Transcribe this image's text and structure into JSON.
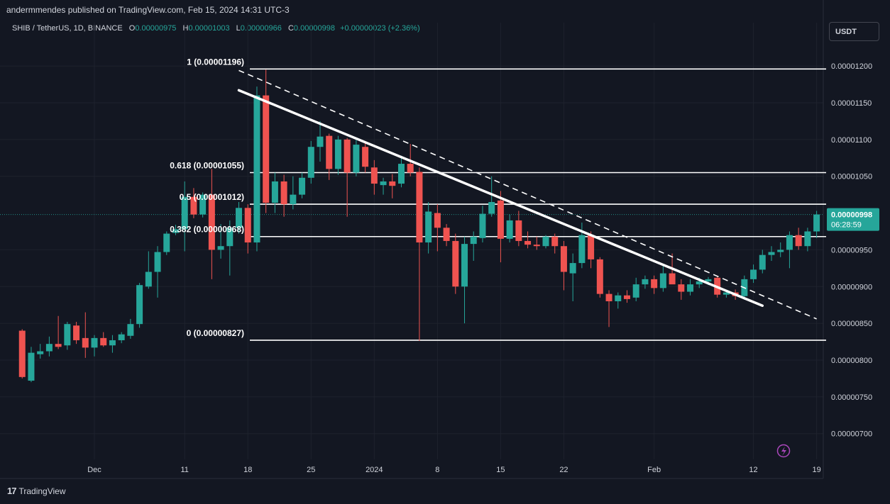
{
  "header": {
    "publisher_line": "andermmendes published on TradingView.com, Feb 15, 2024 14:31 UTC-3",
    "symbol": "SHIB / TetherUS, 1D, BINANCE",
    "o_label": "O",
    "o_value": "0.00000975",
    "h_label": "H",
    "h_value": "0.00001003",
    "l_label": "L",
    "l_value": "0.00000966",
    "c_label": "C",
    "c_value": "0.00000998",
    "change": "+0.00000023 (+2.36%)",
    "currency_button": "USDT"
  },
  "footer": {
    "brand": "TradingView",
    "logo": "17"
  },
  "colors": {
    "background": "#131722",
    "up": "#26a69a",
    "down": "#ef5350",
    "text": "#d1d4dc",
    "grid": "#1e222d",
    "price_tag": "#26a69a",
    "drawing": "#ffffff",
    "icon": "#ab47bc"
  },
  "chart_data": {
    "type": "candlestick",
    "symbol": "SHIB / TetherUS",
    "interval": "1D",
    "exchange": "BINANCE",
    "y_range": [
      6.65e-06,
      1.23e-05
    ],
    "y_ticks": [
      "0.00001200",
      "0.00001150",
      "0.00001100",
      "0.00001050",
      "0.00000950",
      "0.00000900",
      "0.00000850",
      "0.00000800",
      "0.00000750",
      "0.00000700"
    ],
    "x_ticks": [
      {
        "label": "Dec",
        "date": "2023-12-01"
      },
      {
        "label": "11",
        "date": "2023-12-11"
      },
      {
        "label": "18",
        "date": "2023-12-18"
      },
      {
        "label": "25",
        "date": "2023-12-25"
      },
      {
        "label": "2024",
        "date": "2024-01-01"
      },
      {
        "label": "8",
        "date": "2024-01-08"
      },
      {
        "label": "15",
        "date": "2024-01-15"
      },
      {
        "label": "22",
        "date": "2024-01-22"
      },
      {
        "label": "Feb",
        "date": "2024-02-01"
      },
      {
        "label": "12",
        "date": "2024-02-12"
      },
      {
        "label": "19",
        "date": "2024-02-19"
      }
    ],
    "current_price": {
      "label": "0.00000998",
      "countdown": "06:28:59",
      "value": 9.98e-06
    },
    "fib_levels": [
      {
        "label": "1 (0.00001196)",
        "value": 1.196e-05
      },
      {
        "label": "0.618 (0.00001055)",
        "value": 1.055e-05
      },
      {
        "label": "0.5 (0.00001012)",
        "value": 1.012e-05
      },
      {
        "label": "0.382 (0.00000968)",
        "value": 9.68e-06
      },
      {
        "label": "0 (0.00000827)",
        "value": 8.27e-06
      }
    ],
    "trendlines": [
      {
        "style": "solid",
        "from": {
          "date": "2023-12-17",
          "value": 1.167e-05
        },
        "to": {
          "date": "2024-02-13",
          "value": 8.74e-06
        }
      },
      {
        "style": "dashed",
        "from": {
          "date": "2023-12-17",
          "value": 1.194e-05
        },
        "to": {
          "date": "2024-02-19",
          "value": 8.56e-06
        }
      }
    ],
    "candles": [
      {
        "date": "2023-11-23",
        "o": 8.4e-06,
        "h": 8.42e-06,
        "l": 7.75e-06,
        "c": 7.77e-06
      },
      {
        "date": "2023-11-24",
        "o": 7.72e-06,
        "h": 8.18e-06,
        "l": 7.7e-06,
        "c": 8.1e-06
      },
      {
        "date": "2023-11-25",
        "o": 8.08e-06,
        "h": 8.22e-06,
        "l": 8.02e-06,
        "c": 8.12e-06
      },
      {
        "date": "2023-11-26",
        "o": 8.12e-06,
        "h": 8.32e-06,
        "l": 8.05e-06,
        "c": 8.22e-06
      },
      {
        "date": "2023-11-27",
        "o": 8.22e-06,
        "h": 8.6e-06,
        "l": 8.15e-06,
        "c": 8.18e-06
      },
      {
        "date": "2023-11-28",
        "o": 8.2e-06,
        "h": 8.52e-06,
        "l": 8.14e-06,
        "c": 8.49e-06
      },
      {
        "date": "2023-11-29",
        "o": 8.47e-06,
        "h": 8.52e-06,
        "l": 8.22e-06,
        "c": 8.27e-06
      },
      {
        "date": "2023-11-30",
        "o": 8.3e-06,
        "h": 8.65e-06,
        "l": 8.03e-06,
        "c": 8.17e-06
      },
      {
        "date": "2023-12-01",
        "o": 8.17e-06,
        "h": 8.34e-06,
        "l": 8.05e-06,
        "c": 8.3e-06
      },
      {
        "date": "2023-12-02",
        "o": 8.3e-06,
        "h": 8.38e-06,
        "l": 8.18e-06,
        "c": 8.2e-06
      },
      {
        "date": "2023-12-03",
        "o": 8.2e-06,
        "h": 8.34e-06,
        "l": 8.1e-06,
        "c": 8.27e-06
      },
      {
        "date": "2023-12-04",
        "o": 8.27e-06,
        "h": 8.38e-06,
        "l": 8.23e-06,
        "c": 8.35e-06
      },
      {
        "date": "2023-12-05",
        "o": 8.33e-06,
        "h": 8.56e-06,
        "l": 8.29e-06,
        "c": 8.49e-06
      },
      {
        "date": "2023-12-06",
        "o": 8.49e-06,
        "h": 9.05e-06,
        "l": 8.44e-06,
        "c": 9.02e-06
      },
      {
        "date": "2023-12-07",
        "o": 9e-06,
        "h": 9.48e-06,
        "l": 8.97e-06,
        "c": 9.2e-06
      },
      {
        "date": "2023-12-08",
        "o": 9.2e-06,
        "h": 9.55e-06,
        "l": 8.85e-06,
        "c": 9.47e-06
      },
      {
        "date": "2023-12-09",
        "o": 9.47e-06,
        "h": 9.75e-06,
        "l": 9.43e-06,
        "c": 9.72e-06
      },
      {
        "date": "2023-12-10",
        "o": 9.73e-06,
        "h": 9.84e-06,
        "l": 9.7e-06,
        "c": 9.78e-06
      },
      {
        "date": "2023-12-11",
        "o": 9.78e-06,
        "h": 1.043e-05,
        "l": 9.48e-06,
        "c": 1.022e-05
      },
      {
        "date": "2023-12-12",
        "o": 1.022e-05,
        "h": 1.034e-05,
        "l": 9.93e-06,
        "c": 9.98e-06
      },
      {
        "date": "2023-12-13",
        "o": 9.98e-06,
        "h": 1.028e-05,
        "l": 9.94e-06,
        "c": 1.025e-05
      },
      {
        "date": "2023-12-14",
        "o": 1.025e-05,
        "h": 1.06e-05,
        "l": 9.1e-06,
        "c": 9.5e-06
      },
      {
        "date": "2023-12-15",
        "o": 9.5e-06,
        "h": 9.85e-06,
        "l": 9.38e-06,
        "c": 9.55e-06
      },
      {
        "date": "2023-12-16",
        "o": 9.55e-06,
        "h": 9.9e-06,
        "l": 9.15e-06,
        "c": 9.8e-06
      },
      {
        "date": "2023-12-17",
        "o": 9.8e-06,
        "h": 1.015e-05,
        "l": 9.72e-06,
        "c": 1.007e-05
      },
      {
        "date": "2023-12-18",
        "o": 1.007e-05,
        "h": 1.012e-05,
        "l": 9.45e-06,
        "c": 9.6e-06
      },
      {
        "date": "2023-12-19",
        "o": 9.6e-06,
        "h": 1.172e-05,
        "l": 9.48e-06,
        "c": 1.16e-05
      },
      {
        "date": "2023-12-20",
        "o": 1.16e-05,
        "h": 1.195e-05,
        "l": 1e-05,
        "c": 1.014e-05
      },
      {
        "date": "2023-12-21",
        "o": 1.014e-05,
        "h": 1.055e-05,
        "l": 1e-05,
        "c": 1.043e-05
      },
      {
        "date": "2023-12-22",
        "o": 1.043e-05,
        "h": 1.052e-05,
        "l": 9.95e-06,
        "c": 1.012e-05
      },
      {
        "date": "2023-12-23",
        "o": 1.012e-05,
        "h": 1.05e-05,
        "l": 1.005e-05,
        "c": 1.025e-05
      },
      {
        "date": "2023-12-24",
        "o": 1.025e-05,
        "h": 1.055e-05,
        "l": 1.02e-05,
        "c": 1.048e-05
      },
      {
        "date": "2023-12-25",
        "o": 1.048e-05,
        "h": 1.098e-05,
        "l": 1.04e-05,
        "c": 1.09e-05
      },
      {
        "date": "2023-12-26",
        "o": 1.09e-05,
        "h": 1.125e-05,
        "l": 1.07e-05,
        "c": 1.104e-05
      },
      {
        "date": "2023-12-27",
        "o": 1.105e-05,
        "h": 1.108e-05,
        "l": 1.045e-05,
        "c": 1.06e-05
      },
      {
        "date": "2023-12-28",
        "o": 1.06e-05,
        "h": 1.105e-05,
        "l": 1.052e-05,
        "c": 1.1e-05
      },
      {
        "date": "2023-12-29",
        "o": 1.1e-05,
        "h": 1.102e-05,
        "l": 9.95e-06,
        "c": 1.055e-05
      },
      {
        "date": "2023-12-30",
        "o": 1.055e-05,
        "h": 1.1e-05,
        "l": 1.05e-05,
        "c": 1.093e-05
      },
      {
        "date": "2023-12-31",
        "o": 1.09e-05,
        "h": 1.097e-05,
        "l": 1.055e-05,
        "c": 1.063e-05
      },
      {
        "date": "2024-01-01",
        "o": 1.062e-05,
        "h": 1.072e-05,
        "l": 1.025e-05,
        "c": 1.04e-05
      },
      {
        "date": "2024-01-02",
        "o": 1.038e-05,
        "h": 1.048e-05,
        "l": 1.025e-05,
        "c": 1.043e-05
      },
      {
        "date": "2024-01-03",
        "o": 1.043e-05,
        "h": 1.053e-05,
        "l": 1.02e-05,
        "c": 1.037e-05
      },
      {
        "date": "2024-01-04",
        "o": 1.04e-05,
        "h": 1.078e-05,
        "l": 1.035e-05,
        "c": 1.067e-05
      },
      {
        "date": "2024-01-05",
        "o": 1.067e-05,
        "h": 1.094e-05,
        "l": 1.05e-05,
        "c": 1.055e-05
      },
      {
        "date": "2024-01-06",
        "o": 1.056e-05,
        "h": 1.062e-05,
        "l": 8.26e-06,
        "c": 9.6e-06
      },
      {
        "date": "2024-01-07",
        "o": 9.6e-06,
        "h": 1.015e-05,
        "l": 9.45e-06,
        "c": 1.002e-05
      },
      {
        "date": "2024-01-08",
        "o": 1e-05,
        "h": 1.012e-05,
        "l": 9.48e-06,
        "c": 9.8e-06
      },
      {
        "date": "2024-01-09",
        "o": 9.8e-06,
        "h": 9.85e-06,
        "l": 9.55e-06,
        "c": 9.62e-06
      },
      {
        "date": "2024-01-10",
        "o": 9.62e-06,
        "h": 9.72e-06,
        "l": 8.9e-06,
        "c": 9e-06
      },
      {
        "date": "2024-01-11",
        "o": 9e-06,
        "h": 9.68e-06,
        "l": 8.5e-06,
        "c": 9.58e-06
      },
      {
        "date": "2024-01-12",
        "o": 9.58e-06,
        "h": 9.75e-06,
        "l": 9.35e-06,
        "c": 9.68e-06
      },
      {
        "date": "2024-01-13",
        "o": 9.66e-06,
        "h": 1.01e-05,
        "l": 9.6e-06,
        "c": 9.99e-06
      },
      {
        "date": "2024-01-14",
        "o": 9.99e-06,
        "h": 1.05e-05,
        "l": 9.95e-06,
        "c": 1.015e-05
      },
      {
        "date": "2024-01-15",
        "o": 1.017e-05,
        "h": 1.03e-05,
        "l": 9.33e-06,
        "c": 9.65e-06
      },
      {
        "date": "2024-01-16",
        "o": 9.65e-06,
        "h": 9.98e-06,
        "l": 9.6e-06,
        "c": 9.9e-06
      },
      {
        "date": "2024-01-17",
        "o": 9.9e-06,
        "h": 1.003e-05,
        "l": 9.55e-06,
        "c": 9.62e-06
      },
      {
        "date": "2024-01-18",
        "o": 9.62e-06,
        "h": 9.75e-06,
        "l": 9.52e-06,
        "c": 9.57e-06
      },
      {
        "date": "2024-01-19",
        "o": 9.57e-06,
        "h": 9.68e-06,
        "l": 9.5e-06,
        "c": 9.55e-06
      },
      {
        "date": "2024-01-20",
        "o": 9.55e-06,
        "h": 9.7e-06,
        "l": 9.52e-06,
        "c": 9.68e-06
      },
      {
        "date": "2024-01-21",
        "o": 9.68e-06,
        "h": 9.72e-06,
        "l": 9.45e-06,
        "c": 9.55e-06
      },
      {
        "date": "2024-01-22",
        "o": 9.55e-06,
        "h": 9.62e-06,
        "l": 8.95e-06,
        "c": 9.2e-06
      },
      {
        "date": "2024-01-23",
        "o": 9.18e-06,
        "h": 9.45e-06,
        "l": 8.8e-06,
        "c": 9.32e-06
      },
      {
        "date": "2024-01-24",
        "o": 9.32e-06,
        "h": 9.87e-06,
        "l": 9.25e-06,
        "c": 9.7e-06
      },
      {
        "date": "2024-01-25",
        "o": 9.7e-06,
        "h": 9.75e-06,
        "l": 9.25e-06,
        "c": 9.37e-06
      },
      {
        "date": "2024-01-26",
        "o": 9.37e-06,
        "h": 9.4e-06,
        "l": 8.85e-06,
        "c": 8.9e-06
      },
      {
        "date": "2024-01-27",
        "o": 8.9e-06,
        "h": 8.95e-06,
        "l": 8.45e-06,
        "c": 8.8e-06
      },
      {
        "date": "2024-01-28",
        "o": 8.8e-06,
        "h": 8.92e-06,
        "l": 8.7e-06,
        "c": 8.88e-06
      },
      {
        "date": "2024-01-29",
        "o": 8.88e-06,
        "h": 8.95e-06,
        "l": 8.78e-06,
        "c": 8.83e-06
      },
      {
        "date": "2024-01-30",
        "o": 8.85e-06,
        "h": 9.12e-06,
        "l": 8.8e-06,
        "c": 9.03e-06
      },
      {
        "date": "2024-01-31",
        "o": 9.03e-06,
        "h": 9.15e-06,
        "l": 8.97e-06,
        "c": 9.1e-06
      },
      {
        "date": "2024-02-01",
        "o": 9.1e-06,
        "h": 9.15e-06,
        "l": 8.9e-06,
        "c": 8.98e-06
      },
      {
        "date": "2024-02-02",
        "o": 8.98e-06,
        "h": 9.28e-06,
        "l": 8.93e-06,
        "c": 9.18e-06
      },
      {
        "date": "2024-02-03",
        "o": 9.18e-06,
        "h": 9.45e-06,
        "l": 9.05e-06,
        "c": 9.03e-06
      },
      {
        "date": "2024-02-04",
        "o": 9.03e-06,
        "h": 9.1e-06,
        "l": 8.82e-06,
        "c": 8.93e-06
      },
      {
        "date": "2024-02-05",
        "o": 8.93e-06,
        "h": 9.1e-06,
        "l": 8.88e-06,
        "c": 9.03e-06
      },
      {
        "date": "2024-02-06",
        "o": 9.03e-06,
        "h": 9.12e-06,
        "l": 8.98e-06,
        "c": 9.07e-06
      },
      {
        "date": "2024-02-07",
        "o": 9.07e-06,
        "h": 9.13e-06,
        "l": 9.02e-06,
        "c": 9.1e-06
      },
      {
        "date": "2024-02-08",
        "o": 9.12e-06,
        "h": 9.15e-06,
        "l": 8.85e-06,
        "c": 8.89e-06
      },
      {
        "date": "2024-02-09",
        "o": 8.89e-06,
        "h": 8.95e-06,
        "l": 8.85e-06,
        "c": 8.92e-06
      },
      {
        "date": "2024-02-10",
        "o": 8.92e-06,
        "h": 8.96e-06,
        "l": 8.82e-06,
        "c": 8.87e-06
      },
      {
        "date": "2024-02-11",
        "o": 8.87e-06,
        "h": 9.15e-06,
        "l": 8.82e-06,
        "c": 9.1e-06
      },
      {
        "date": "2024-02-12",
        "o": 9.1e-06,
        "h": 9.3e-06,
        "l": 9.05e-06,
        "c": 9.23e-06
      },
      {
        "date": "2024-02-13",
        "o": 9.23e-06,
        "h": 9.5e-06,
        "l": 9.18e-06,
        "c": 9.43e-06
      },
      {
        "date": "2024-02-14",
        "o": 9.43e-06,
        "h": 9.55e-06,
        "l": 9.35e-06,
        "c": 9.47e-06
      },
      {
        "date": "2024-02-15",
        "o": 9.47e-06,
        "h": 9.6e-06,
        "l": 9.4e-06,
        "c": 9.5e-06
      },
      {
        "date": "2024-02-16",
        "o": 9.5e-06,
        "h": 9.75e-06,
        "l": 9.25e-06,
        "c": 9.7e-06
      },
      {
        "date": "2024-02-17",
        "o": 9.7e-06,
        "h": 9.8e-06,
        "l": 9.5e-06,
        "c": 9.55e-06
      },
      {
        "date": "2024-02-18",
        "o": 9.55e-06,
        "h": 9.8e-06,
        "l": 9.48e-06,
        "c": 9.75e-06
      },
      {
        "date": "2024-02-19",
        "o": 9.75e-06,
        "h": 1.003e-05,
        "l": 9.66e-06,
        "c": 9.98e-06
      }
    ]
  }
}
